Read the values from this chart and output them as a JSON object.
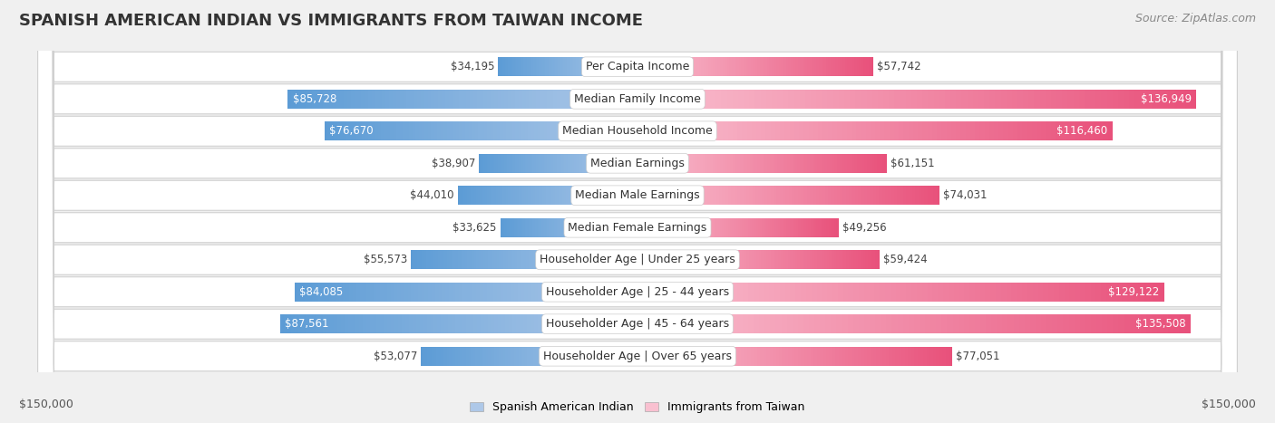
{
  "title": "SPANISH AMERICAN INDIAN VS IMMIGRANTS FROM TAIWAN INCOME",
  "source": "Source: ZipAtlas.com",
  "categories": [
    "Per Capita Income",
    "Median Family Income",
    "Median Household Income",
    "Median Earnings",
    "Median Male Earnings",
    "Median Female Earnings",
    "Householder Age | Under 25 years",
    "Householder Age | 25 - 44 years",
    "Householder Age | 45 - 64 years",
    "Householder Age | Over 65 years"
  ],
  "left_values": [
    34195,
    85728,
    76670,
    38907,
    44010,
    33625,
    55573,
    84085,
    87561,
    53077
  ],
  "right_values": [
    57742,
    136949,
    116460,
    61151,
    74031,
    49256,
    59424,
    129122,
    135508,
    77051
  ],
  "left_labels": [
    "$34,195",
    "$85,728",
    "$76,670",
    "$38,907",
    "$44,010",
    "$33,625",
    "$55,573",
    "$84,085",
    "$87,561",
    "$53,077"
  ],
  "right_labels": [
    "$57,742",
    "$136,949",
    "$116,460",
    "$61,151",
    "$74,031",
    "$49,256",
    "$59,424",
    "$129,122",
    "$135,508",
    "$77,051"
  ],
  "left_color_light": "#aec8e8",
  "left_color_dark": "#5b9bd5",
  "right_color_light": "#f9c0d0",
  "right_color_dark": "#e8507a",
  "max_value": 150000,
  "left_legend": "Spanish American Indian",
  "right_legend": "Immigrants from Taiwan",
  "axis_label_left": "$150,000",
  "axis_label_right": "$150,000",
  "bg_color": "#f0f0f0",
  "row_bg_color": "#ffffff",
  "row_border_color": "#d0d0d0",
  "title_fontsize": 13,
  "source_fontsize": 9,
  "bar_label_fontsize": 8.5,
  "category_fontsize": 9,
  "legend_fontsize": 9,
  "axis_tick_fontsize": 9
}
